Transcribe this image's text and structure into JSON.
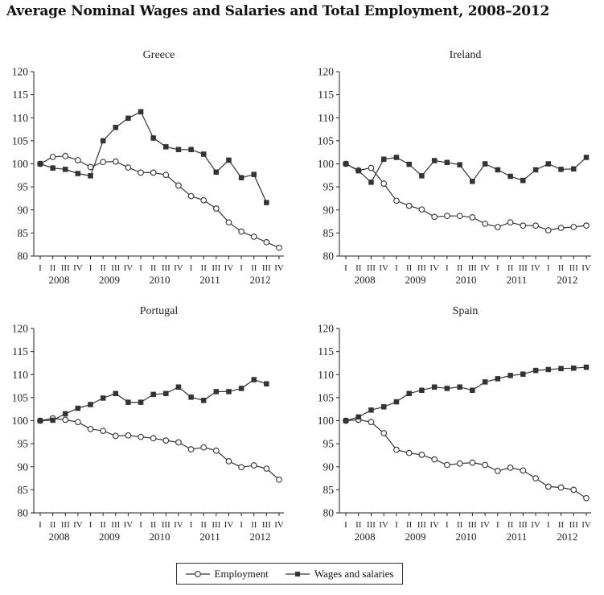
{
  "title": "Average Nominal Wages and Salaries and Total Employment, 2008–2012",
  "legend": {
    "employment": "Employment",
    "wages": "Wages and salaries"
  },
  "chart_data": [
    {
      "type": "line",
      "title": "Greece",
      "ylim": [
        80,
        120
      ],
      "yticks": [
        "80",
        "85",
        "90",
        "95",
        "100",
        "105",
        "110",
        "115",
        "120"
      ],
      "quarters": [
        "I",
        "II",
        "III",
        "IV"
      ],
      "years": [
        "2008",
        "2009",
        "2010",
        "2011",
        "2012"
      ],
      "series": [
        {
          "name": "Employment",
          "marker": "open-circle",
          "values": [
            100,
            101.5,
            101.7,
            100.8,
            99.3,
            100.4,
            100.5,
            99.2,
            98.1,
            98.1,
            97.6,
            95.3,
            93.0,
            92.1,
            90.3,
            87.3,
            85.3,
            84.2,
            83.0,
            81.8
          ]
        },
        {
          "name": "Wages and salaries",
          "marker": "filled-square",
          "values": [
            100,
            99.1,
            98.8,
            97.9,
            97.4,
            105.0,
            107.9,
            109.9,
            111.3,
            105.6,
            103.7,
            103.1,
            103.1,
            102.1,
            98.2,
            100.8,
            97.0,
            97.7,
            91.6,
            null
          ]
        }
      ]
    },
    {
      "type": "line",
      "title": "Ireland",
      "ylim": [
        80,
        120
      ],
      "yticks": [
        "80",
        "85",
        "90",
        "95",
        "100",
        "105",
        "110",
        "115",
        "120"
      ],
      "quarters": [
        "I",
        "II",
        "III",
        "IV"
      ],
      "years": [
        "2008",
        "2009",
        "2010",
        "2011",
        "2012"
      ],
      "series": [
        {
          "name": "Employment",
          "marker": "open-circle",
          "values": [
            100,
            98.6,
            99.1,
            95.7,
            92.0,
            90.9,
            90.1,
            88.5,
            88.7,
            88.7,
            88.4,
            87.0,
            86.3,
            87.3,
            86.6,
            86.6,
            85.6,
            86.1,
            86.3,
            86.6
          ]
        },
        {
          "name": "Wages and salaries",
          "marker": "filled-square",
          "values": [
            100,
            98.5,
            96.0,
            101.0,
            101.4,
            99.9,
            97.4,
            100.7,
            100.3,
            99.8,
            96.2,
            100.0,
            98.7,
            97.3,
            96.4,
            98.7,
            100.0,
            98.8,
            98.9,
            101.4
          ]
        }
      ]
    },
    {
      "type": "line",
      "title": "Portugal",
      "ylim": [
        80,
        120
      ],
      "yticks": [
        "80",
        "85",
        "90",
        "95",
        "100",
        "105",
        "110",
        "115",
        "120"
      ],
      "quarters": [
        "I",
        "II",
        "III",
        "IV"
      ],
      "years": [
        "2008",
        "2009",
        "2010",
        "2011",
        "2012"
      ],
      "series": [
        {
          "name": "Employment",
          "marker": "open-circle",
          "values": [
            100,
            100.5,
            100.2,
            99.7,
            98.2,
            97.8,
            96.7,
            96.8,
            96.5,
            96.2,
            95.7,
            95.3,
            93.8,
            94.2,
            93.5,
            91.2,
            89.9,
            90.3,
            89.6,
            87.2
          ]
        },
        {
          "name": "Wages and salaries",
          "marker": "filled-square",
          "values": [
            100,
            100.1,
            101.5,
            102.7,
            103.5,
            104.9,
            105.9,
            104.0,
            104.0,
            105.7,
            105.9,
            107.3,
            105.1,
            104.4,
            106.3,
            106.3,
            107.0,
            108.9,
            108.0,
            null
          ]
        }
      ]
    },
    {
      "type": "line",
      "title": "Spain",
      "ylim": [
        80,
        120
      ],
      "yticks": [
        "80",
        "85",
        "90",
        "95",
        "100",
        "105",
        "110",
        "115",
        "120"
      ],
      "quarters": [
        "I",
        "II",
        "III",
        "IV"
      ],
      "years": [
        "2008",
        "2009",
        "2010",
        "2011",
        "2012"
      ],
      "series": [
        {
          "name": "Employment",
          "marker": "open-circle",
          "values": [
            100,
            100.2,
            99.7,
            97.3,
            93.7,
            93.0,
            92.6,
            91.6,
            90.4,
            90.7,
            90.9,
            90.4,
            89.1,
            89.8,
            89.2,
            87.5,
            85.7,
            85.5,
            85.0,
            83.2
          ]
        },
        {
          "name": "Wages and salaries",
          "marker": "filled-square",
          "values": [
            100,
            100.8,
            102.3,
            103.0,
            104.1,
            105.9,
            106.6,
            107.3,
            107.0,
            107.3,
            106.6,
            108.4,
            109.1,
            109.8,
            110.1,
            110.9,
            111.1,
            111.3,
            111.4,
            111.6
          ]
        }
      ]
    }
  ]
}
